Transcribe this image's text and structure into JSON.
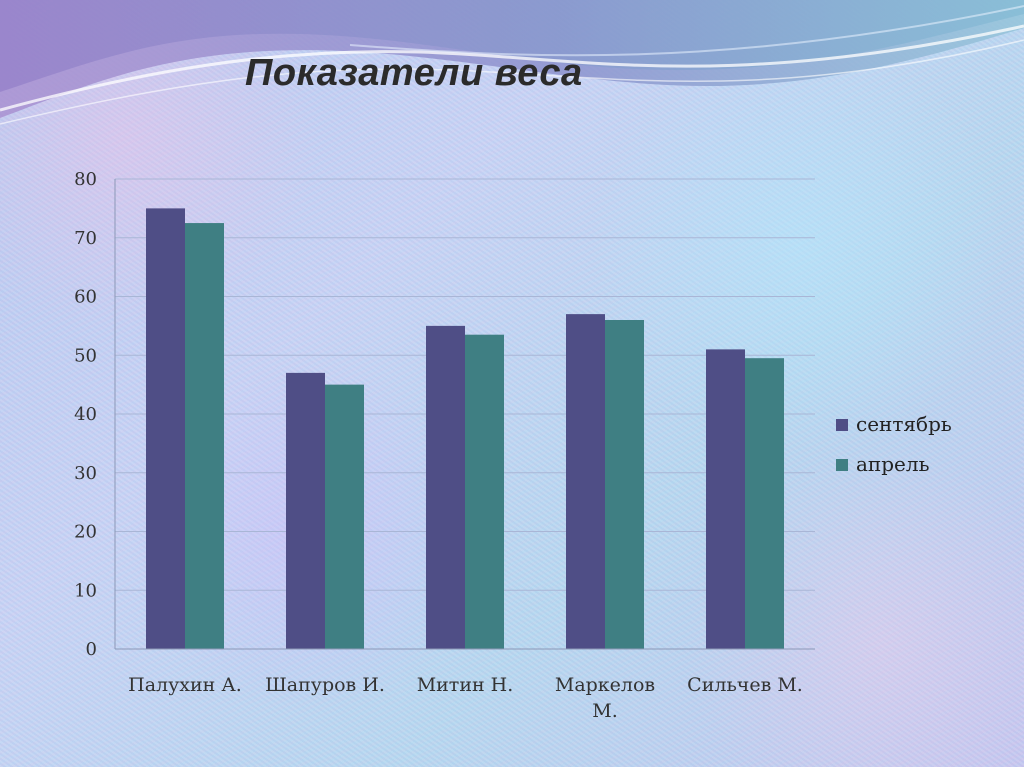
{
  "slide": {
    "title": "Показатели веса"
  },
  "colors": {
    "series_1": "#4f4e86",
    "series_2": "#3f7f83",
    "gridline": "#a9b6d6",
    "axis": "#8c98b7"
  },
  "chart_data": {
    "type": "bar",
    "title": "",
    "xlabel": "",
    "ylabel": "",
    "categories": [
      "Палухин А.",
      "Шапуров И.",
      "Митин Н.",
      "Маркелов М.",
      "Сильчев М."
    ],
    "series": [
      {
        "name": "сентябрь",
        "values": [
          75,
          47,
          55,
          57,
          51
        ]
      },
      {
        "name": "апрель",
        "values": [
          72.5,
          45,
          53.5,
          56,
          49.5
        ]
      }
    ],
    "ylim": [
      0,
      80
    ],
    "yticks": [
      "0",
      "10",
      "20",
      "30",
      "40",
      "50",
      "60",
      "70",
      "80"
    ],
    "grid": true,
    "legend": "right"
  }
}
